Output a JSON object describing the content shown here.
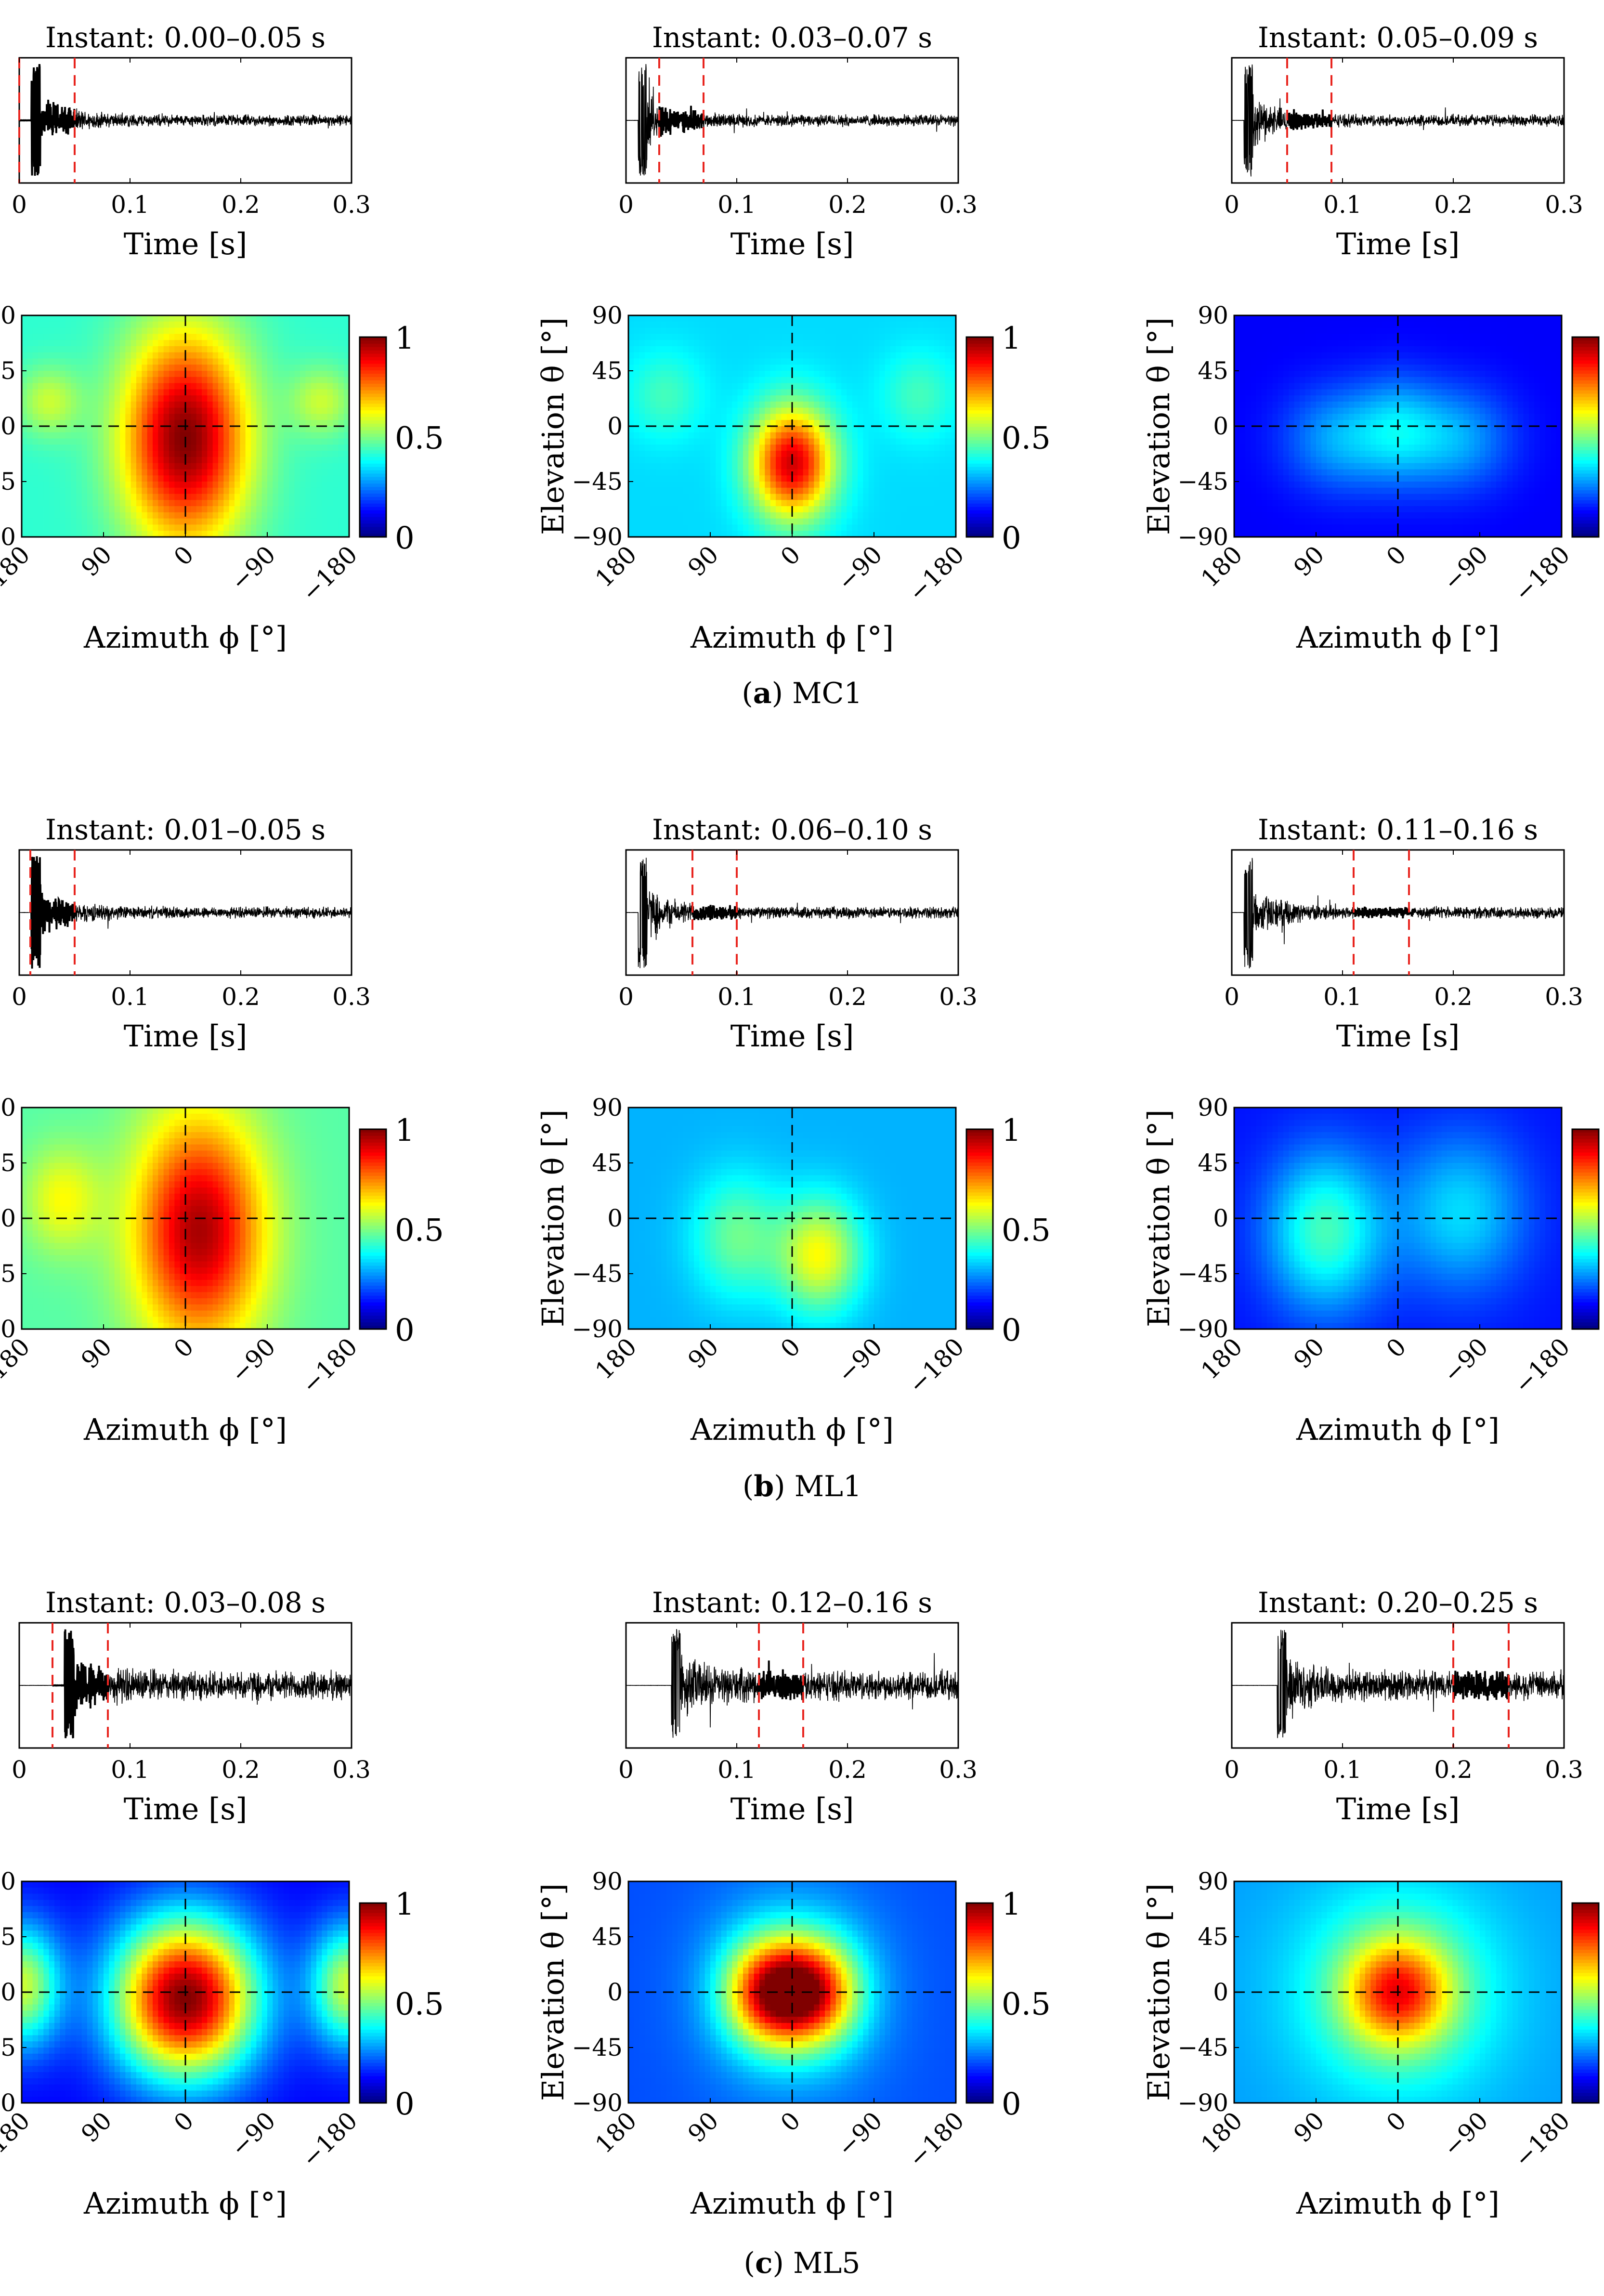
{
  "figure": {
    "time_xlabel": "Time [s]",
    "time_ticks": [
      "0",
      "0.1",
      "0.2",
      "0.3"
    ],
    "map_xlabel": "Azimuth ϕ [°]",
    "map_ylabel": "Elevation θ [°]",
    "azimuth_ticks": [
      "180",
      "90",
      "0",
      "−90",
      "−180"
    ],
    "elevation_ticks": [
      "90",
      "45",
      "0",
      "−45",
      "−90"
    ],
    "colorbar_ticks": [
      "1",
      "0.5",
      "0"
    ]
  },
  "captions": [
    {
      "letter": "a",
      "text": "MC1"
    },
    {
      "letter": "b",
      "text": "ML1"
    },
    {
      "letter": "c",
      "text": "ML5"
    }
  ],
  "chart_data": [
    {
      "type": "line",
      "group": "a",
      "title": "Instant: 0.00–0.05 s",
      "xlabel": "Time [s]",
      "xlim": [
        0,
        0.3
      ],
      "window": [
        0.0,
        0.05
      ],
      "direct_sound_time": 0.015,
      "noise_level": 0.12
    },
    {
      "type": "line",
      "group": "a",
      "title": "Instant: 0.03–0.07 s",
      "xlabel": "Time [s]",
      "xlim": [
        0,
        0.3
      ],
      "window": [
        0.03,
        0.07
      ],
      "direct_sound_time": 0.015,
      "noise_level": 0.12
    },
    {
      "type": "line",
      "group": "a",
      "title": "Instant: 0.05–0.09 s",
      "xlabel": "Time [s]",
      "xlim": [
        0,
        0.3
      ],
      "window": [
        0.05,
        0.09
      ],
      "direct_sound_time": 0.015,
      "noise_level": 0.12
    },
    {
      "type": "heatmap",
      "group": "a",
      "xlabel": "Azimuth ϕ [°]",
      "ylabel": "Elevation θ [°]",
      "xlim": [
        180,
        -180
      ],
      "ylim": [
        -90,
        90
      ],
      "clim": [
        0,
        1
      ],
      "base": 0.42,
      "blobs": [
        {
          "az": 0,
          "el": -10,
          "amp": 0.58,
          "saz": 48,
          "sel": 60
        },
        {
          "az": 150,
          "el": 20,
          "amp": 0.15,
          "saz": 25,
          "sel": 20
        },
        {
          "az": -150,
          "el": 20,
          "amp": 0.15,
          "saz": 25,
          "sel": 20
        }
      ]
    },
    {
      "type": "heatmap",
      "group": "a",
      "xlabel": "Azimuth ϕ [°]",
      "ylabel": "Elevation θ [°]",
      "xlim": [
        180,
        -180
      ],
      "ylim": [
        -90,
        90
      ],
      "clim": [
        0,
        1
      ],
      "base": 0.34,
      "blobs": [
        {
          "az": 0,
          "el": -30,
          "amp": 0.58,
          "saz": 32,
          "sel": 32
        },
        {
          "az": 140,
          "el": 25,
          "amp": 0.1,
          "saz": 30,
          "sel": 25
        },
        {
          "az": -140,
          "el": 25,
          "amp": 0.1,
          "saz": 30,
          "sel": 25
        }
      ]
    },
    {
      "type": "heatmap",
      "group": "a",
      "xlabel": "Azimuth ϕ [°]",
      "ylabel": "Elevation θ [°]",
      "xlim": [
        180,
        -180
      ],
      "ylim": [
        -90,
        90
      ],
      "clim": [
        0,
        1
      ],
      "base": 0.12,
      "blobs": [
        {
          "az": 60,
          "el": -10,
          "amp": 0.18,
          "saz": 45,
          "sel": 30
        },
        {
          "az": -60,
          "el": -10,
          "amp": 0.18,
          "saz": 45,
          "sel": 30
        },
        {
          "az": 0,
          "el": 0,
          "amp": 0.12,
          "saz": 30,
          "sel": 30
        }
      ]
    },
    {
      "type": "line",
      "group": "b",
      "title": "Instant: 0.01–0.05 s",
      "xlabel": "Time [s]",
      "xlim": [
        0,
        0.3
      ],
      "window": [
        0.01,
        0.05
      ],
      "direct_sound_time": 0.015,
      "noise_level": 0.12
    },
    {
      "type": "line",
      "group": "b",
      "title": "Instant: 0.06–0.10 s",
      "xlabel": "Time [s]",
      "xlim": [
        0,
        0.3
      ],
      "window": [
        0.06,
        0.1
      ],
      "direct_sound_time": 0.015,
      "noise_level": 0.12
    },
    {
      "type": "line",
      "group": "b",
      "title": "Instant: 0.11–0.16 s",
      "xlabel": "Time [s]",
      "xlim": [
        0,
        0.3
      ],
      "window": [
        0.11,
        0.16
      ],
      "direct_sound_time": 0.015,
      "noise_level": 0.12
    },
    {
      "type": "heatmap",
      "group": "b",
      "xlabel": "Azimuth ϕ [°]",
      "ylabel": "Elevation θ [°]",
      "xlim": [
        180,
        -180
      ],
      "ylim": [
        -90,
        90
      ],
      "clim": [
        0,
        1
      ],
      "base": 0.46,
      "blobs": [
        {
          "az": -15,
          "el": -10,
          "amp": 0.5,
          "saz": 50,
          "sel": 65
        },
        {
          "az": 135,
          "el": 15,
          "amp": 0.16,
          "saz": 30,
          "sel": 30
        }
      ]
    },
    {
      "type": "heatmap",
      "group": "b",
      "xlabel": "Azimuth ϕ [°]",
      "ylabel": "Elevation θ [°]",
      "xlim": [
        180,
        -180
      ],
      "ylim": [
        -90,
        90
      ],
      "clim": [
        0,
        1
      ],
      "base": 0.3,
      "blobs": [
        {
          "az": -30,
          "el": -30,
          "amp": 0.32,
          "saz": 32,
          "sel": 32
        },
        {
          "az": 60,
          "el": -15,
          "amp": 0.18,
          "saz": 35,
          "sel": 35
        }
      ]
    },
    {
      "type": "heatmap",
      "group": "b",
      "xlabel": "Azimuth ϕ [°]",
      "ylabel": "Elevation θ [°]",
      "xlim": [
        180,
        -180
      ],
      "ylim": [
        -90,
        90
      ],
      "clim": [
        0,
        1
      ],
      "base": 0.14,
      "blobs": [
        {
          "az": 80,
          "el": -10,
          "amp": 0.3,
          "saz": 45,
          "sel": 45
        },
        {
          "az": -70,
          "el": 5,
          "amp": 0.2,
          "saz": 50,
          "sel": 45
        }
      ]
    },
    {
      "type": "line",
      "group": "c",
      "title": "Instant: 0.03–0.08 s",
      "xlabel": "Time [s]",
      "xlim": [
        0,
        0.3
      ],
      "window": [
        0.03,
        0.08
      ],
      "direct_sound_time": 0.045,
      "noise_level": 0.3
    },
    {
      "type": "line",
      "group": "c",
      "title": "Instant: 0.12–0.16 s",
      "xlabel": "Time [s]",
      "xlim": [
        0,
        0.3
      ],
      "window": [
        0.12,
        0.16
      ],
      "direct_sound_time": 0.045,
      "noise_level": 0.3
    },
    {
      "type": "line",
      "group": "c",
      "title": "Instant: 0.20–0.25 s",
      "xlabel": "Time [s]",
      "xlim": [
        0,
        0.3
      ],
      "window": [
        0.2,
        0.25
      ],
      "direct_sound_time": 0.045,
      "noise_level": 0.3
    },
    {
      "type": "heatmap",
      "group": "c",
      "xlabel": "Azimuth ϕ [°]",
      "ylabel": "Elevation θ [°]",
      "xlim": [
        180,
        -180
      ],
      "ylim": [
        -90,
        90
      ],
      "clim": [
        0,
        1
      ],
      "base": 0.12,
      "blobs": [
        {
          "az": 0,
          "el": -5,
          "amp": 0.88,
          "saz": 55,
          "sel": 45
        },
        {
          "az": 180,
          "el": 5,
          "amp": 0.45,
          "saz": 30,
          "sel": 35
        },
        {
          "az": -180,
          "el": 5,
          "amp": 0.45,
          "saz": 30,
          "sel": 35
        }
      ]
    },
    {
      "type": "heatmap",
      "group": "c",
      "xlabel": "Azimuth ϕ [°]",
      "ylabel": "Elevation θ [°]",
      "xlim": [
        180,
        -180
      ],
      "ylim": [
        -90,
        90
      ],
      "clim": [
        0,
        1
      ],
      "base": 0.2,
      "blobs": [
        {
          "az": 25,
          "el": 0,
          "amp": 0.55,
          "saz": 35,
          "sel": 30
        },
        {
          "az": -25,
          "el": 0,
          "amp": 0.5,
          "saz": 35,
          "sel": 30
        },
        {
          "az": 0,
          "el": 0,
          "amp": 0.15,
          "saz": 70,
          "sel": 60
        }
      ]
    },
    {
      "type": "heatmap",
      "group": "c",
      "xlabel": "Azimuth ϕ [°]",
      "ylabel": "Elevation θ [°]",
      "xlim": [
        180,
        -180
      ],
      "ylim": [
        -90,
        90
      ],
      "clim": [
        0,
        1
      ],
      "base": 0.28,
      "blobs": [
        {
          "az": 0,
          "el": 0,
          "amp": 0.42,
          "saz": 40,
          "sel": 30
        },
        {
          "az": 0,
          "el": 0,
          "amp": 0.2,
          "saz": 80,
          "sel": 60
        }
      ]
    }
  ]
}
